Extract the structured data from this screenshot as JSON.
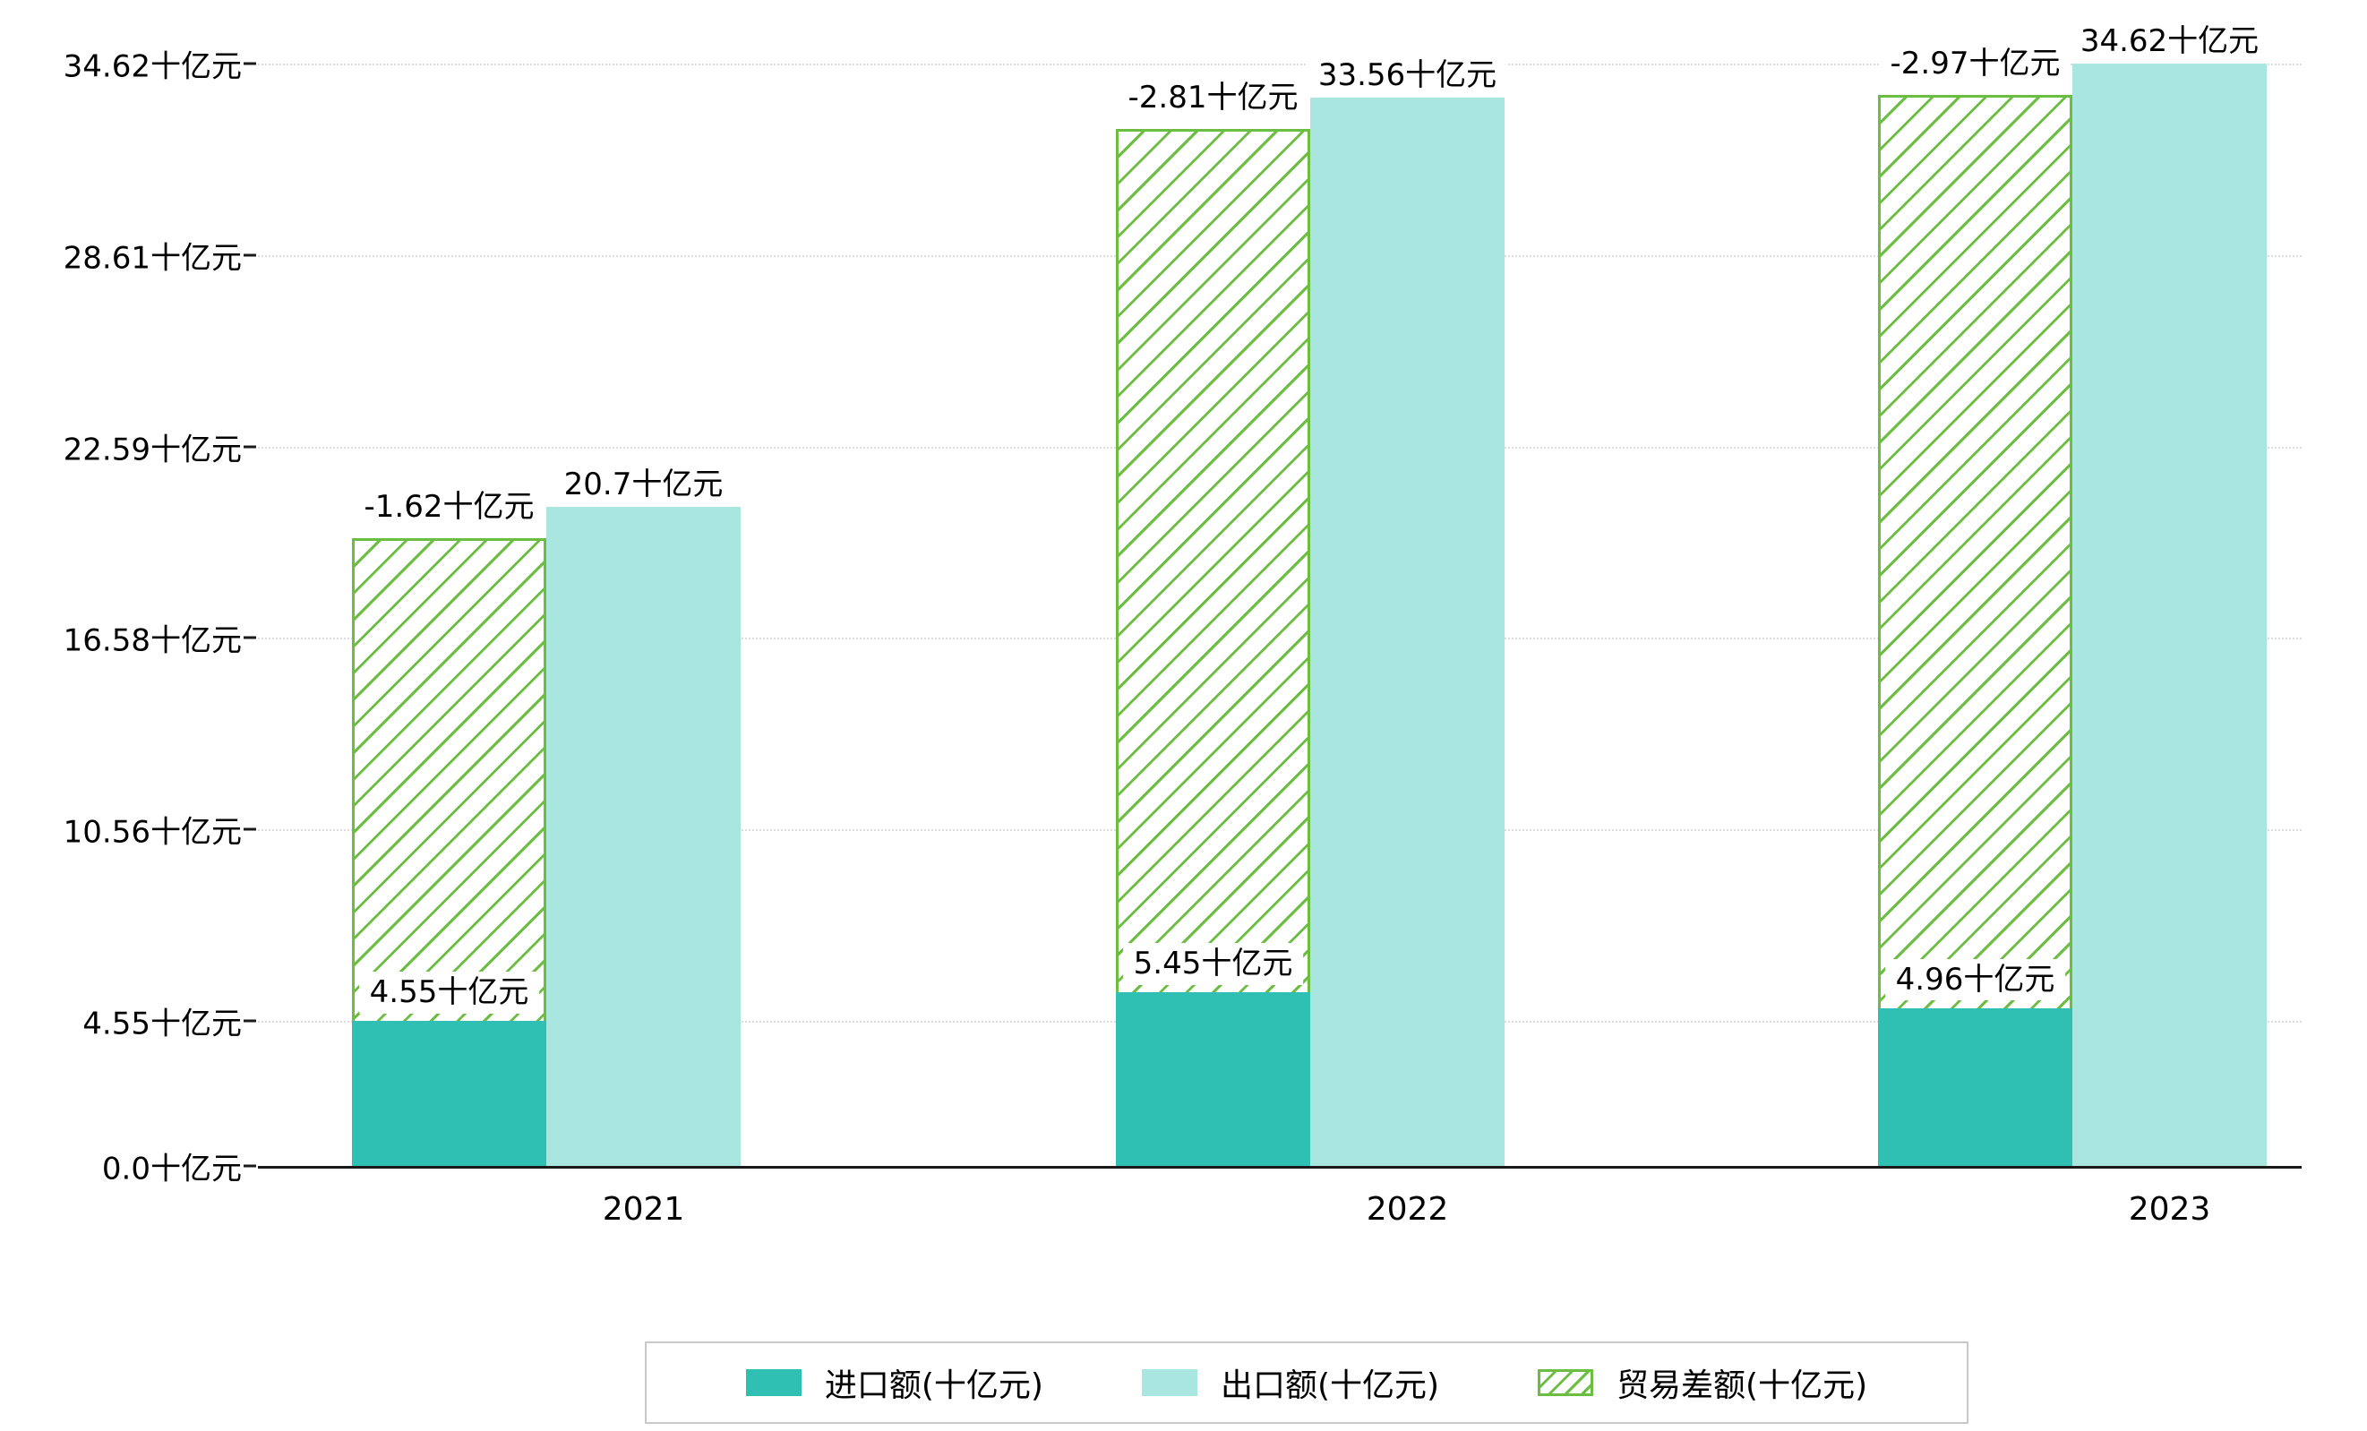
{
  "chart_data": {
    "type": "bar",
    "title": "",
    "categories": [
      "2021",
      "2022",
      "2023"
    ],
    "series": [
      {
        "name": "进口额(十亿元)",
        "values": [
          4.55,
          5.45,
          4.96
        ],
        "color": "#2fbfb3",
        "style": "solid",
        "labels": [
          "4.55十亿元",
          "5.45十亿元",
          "4.96十亿元"
        ]
      },
      {
        "name": "出口额(十亿元)",
        "values": [
          20.7,
          33.56,
          34.62
        ],
        "color": "#a8e6df",
        "style": "solid",
        "labels": [
          "20.7十亿元",
          "33.56十亿元",
          "34.62十亿元"
        ]
      },
      {
        "name": "贸易差额(十亿元)",
        "values": [
          -1.62,
          -2.81,
          -2.97
        ],
        "color": "#6bbe42",
        "style": "hatched",
        "labels": [
          "-1.62十亿元",
          "-2.81十亿元",
          "-2.97十亿元"
        ]
      }
    ],
    "xlabel": "",
    "ylabel": "",
    "unit": "十亿元",
    "y_ticks": [
      "0.0十亿元",
      "4.55十亿元",
      "10.56十亿元",
      "16.58十亿元",
      "22.59十亿元",
      "28.61十亿元",
      "34.62十亿元"
    ],
    "y_tick_values": [
      0.0,
      4.55,
      10.56,
      16.58,
      22.59,
      28.61,
      34.62
    ],
    "ylim": [
      0,
      34.62
    ],
    "grid": "horizontal-dotted",
    "legend_position": "bottom"
  },
  "legend": {
    "border_color": "#c9c9c9"
  }
}
